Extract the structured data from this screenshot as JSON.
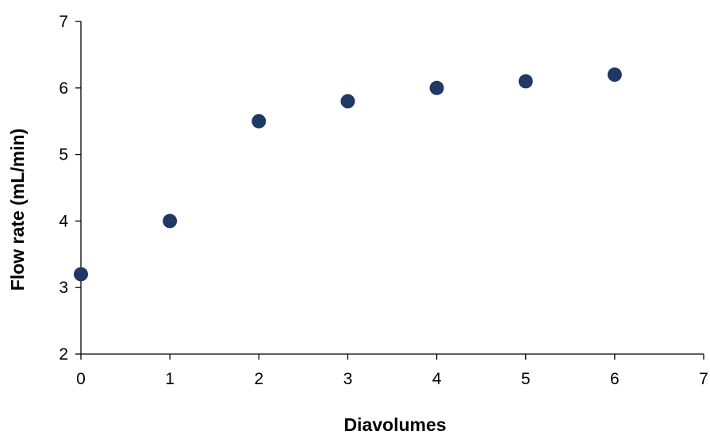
{
  "chart_data": {
    "type": "scatter",
    "xlabel": "Diavolumes",
    "ylabel": "Flow rate (mL/min)",
    "xlim": [
      0,
      7
    ],
    "ylim": [
      2,
      7
    ],
    "x_ticks": [
      0,
      1,
      2,
      3,
      4,
      5,
      6,
      7
    ],
    "y_ticks": [
      2,
      3,
      4,
      5,
      6,
      7
    ],
    "grid": false,
    "legend": "none",
    "marker_color": "#203864",
    "series": [
      {
        "x": [
          0,
          1,
          2,
          3,
          4,
          5,
          6
        ],
        "y": [
          3.2,
          4.0,
          5.5,
          5.8,
          6.0,
          6.1,
          6.2
        ]
      }
    ]
  }
}
